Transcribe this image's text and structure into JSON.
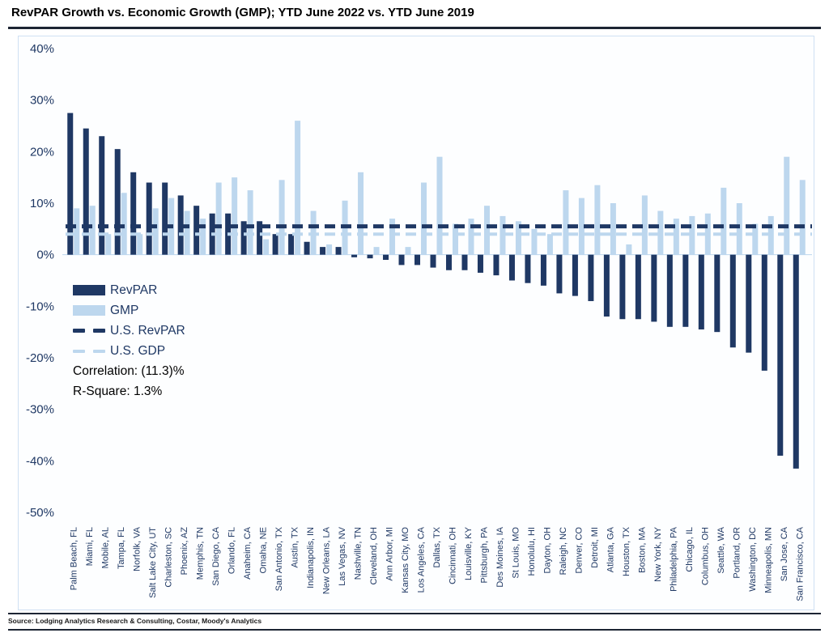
{
  "title": "RevPAR Growth vs. Economic Growth (GMP); YTD June 2022 vs. YTD June 2019",
  "source": "Source: Lodging Analytics Research & Consulting, Costar, Moody's Analytics",
  "legend": {
    "revpar": "RevPAR",
    "gmp": "GMP",
    "us_revpar": "U.S. RevPAR",
    "us_gdp": "U.S. GDP"
  },
  "stats": {
    "correlation": "Correlation: (11.3)%",
    "r_square": "R-Square: 1.3%"
  },
  "colors": {
    "revpar": "#1F3864",
    "gmp": "#BDD7EE",
    "axis_text": "#1F3864",
    "rule": "#1c2433",
    "frame": "#cfe0f3"
  },
  "chart_data": {
    "type": "bar",
    "title": "RevPAR Growth vs. Economic Growth (GMP); YTD June 2022 vs. YTD June 2019",
    "categories": [
      "Palm Beach, FL",
      "Miami, FL",
      "Mobile, AL",
      "Tampa, FL",
      "Norfolk, VA",
      "Salt Lake City, UT",
      "Charleston, SC",
      "Phoenix, AZ",
      "Memphis, TN",
      "San Diego, CA",
      "Orlando, FL",
      "Anaheim, CA",
      "Omaha, NE",
      "San Antonio, TX",
      "Austin, TX",
      "Indianapolis, IN",
      "New Orleans, LA",
      "Las Vegas, NV",
      "Nashville, TN",
      "Cleveland, OH",
      "Ann Arbor, MI",
      "Kansas City, MO",
      "Los Angeles, CA",
      "Dallas, TX",
      "Cincinnati, OH",
      "Louisville, KY",
      "Pittsburgh, PA",
      "Des Moines, IA",
      "St Louis, MO",
      "Honolulu, HI",
      "Dayton, OH",
      "Raleigh, NC",
      "Denver, CO",
      "Detroit, MI",
      "Atlanta, GA",
      "Houston, TX",
      "Boston, MA",
      "New York, NY",
      "Philadelphia, PA",
      "Chicago, IL",
      "Columbus, OH",
      "Seattle, WA",
      "Portland, OR",
      "Washington, DC",
      "Minneapolis, MN",
      "San Jose, CA",
      "San Francisco, CA"
    ],
    "series": [
      {
        "name": "RevPAR",
        "values": [
          27.5,
          24.5,
          23,
          20.5,
          16,
          14,
          14,
          11.5,
          9.5,
          8,
          8,
          6.5,
          6.5,
          4,
          4,
          2.5,
          1.5,
          1.5,
          -0.5,
          -0.7,
          -1,
          -2,
          -2,
          -2.5,
          -3,
          -3,
          -3.5,
          -4,
          -5,
          -5.5,
          -6,
          -7.5,
          -8,
          -9,
          -12,
          -12.5,
          -12.5,
          -13,
          -14,
          -14,
          -14.5,
          -15,
          -18,
          -19,
          -22.5,
          -39,
          -41.5
        ]
      },
      {
        "name": "GMP",
        "values": [
          9,
          9.5,
          4,
          12,
          4,
          9,
          11,
          8.5,
          7,
          14,
          15,
          12.5,
          3,
          14.5,
          26,
          8.5,
          2,
          10.5,
          16,
          1.5,
          7,
          1.5,
          14,
          19,
          6,
          7,
          9.5,
          7.5,
          6.5,
          5,
          4,
          12.5,
          11,
          13.5,
          10,
          2,
          11.5,
          8.5,
          7,
          7.5,
          8,
          13,
          10,
          6,
          7.5,
          19,
          14.5
        ]
      }
    ],
    "reference_lines": [
      {
        "name": "U.S. RevPAR",
        "value": 5.5,
        "style": "dashed",
        "color": "#1F3864"
      },
      {
        "name": "U.S. GDP",
        "value": 4,
        "style": "dashed",
        "color": "#BDD7EE"
      }
    ],
    "annotations": [
      "Correlation: (11.3)%",
      "R-Square: 1.3%"
    ],
    "xlabel": "",
    "ylabel": "",
    "ylim": [
      -50,
      40
    ],
    "yticks": [
      "40%",
      "30%",
      "20%",
      "10%",
      "0%",
      "-10%",
      "-20%",
      "-30%",
      "-40%",
      "-50%"
    ],
    "grid": false,
    "legend_position": "inside-left"
  }
}
